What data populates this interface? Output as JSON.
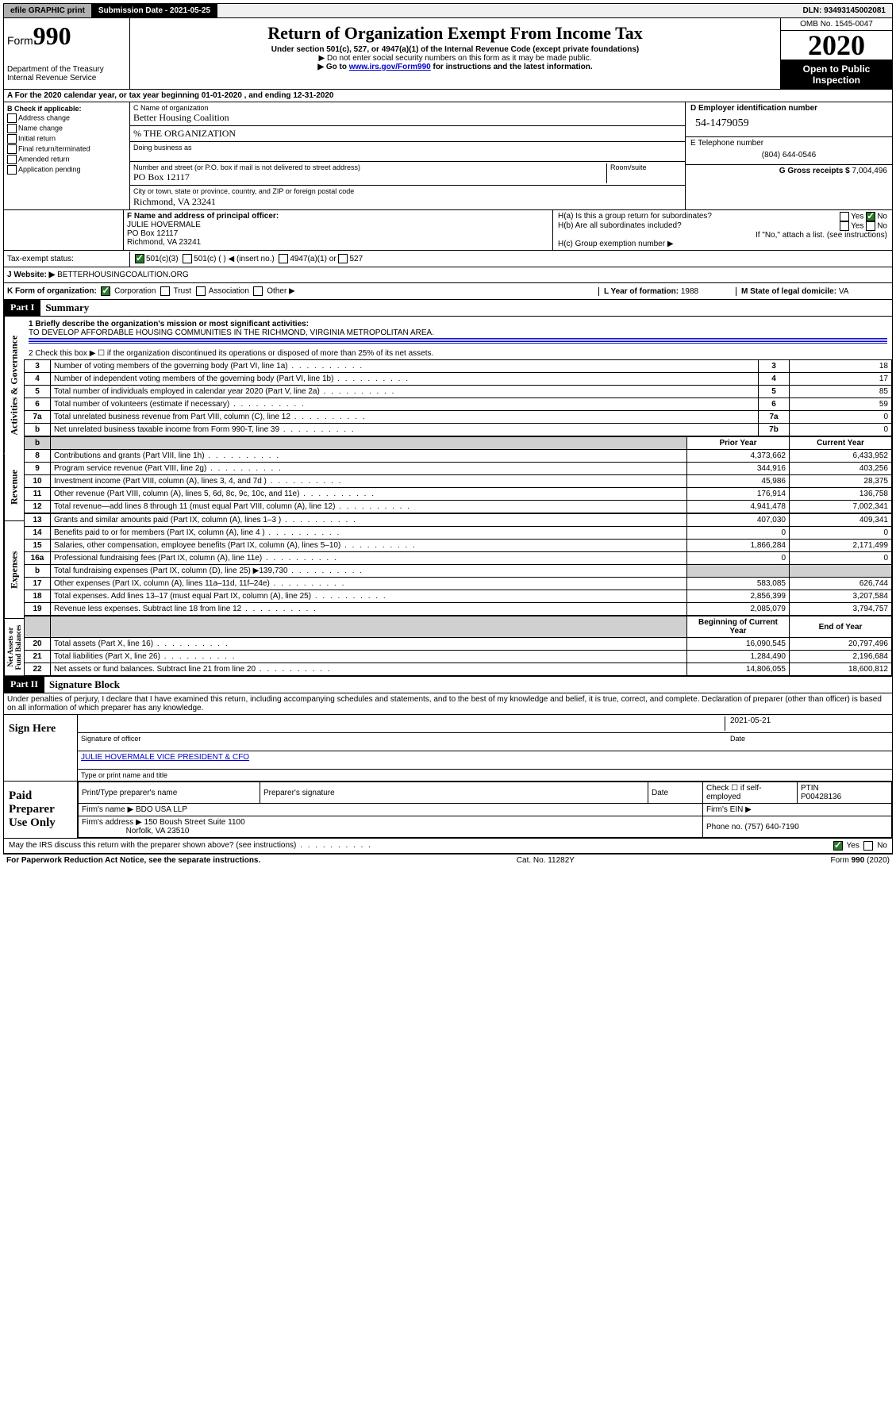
{
  "topbar": {
    "efile": "efile GRAPHIC print",
    "submission_label": "Submission Date - 2021-05-25",
    "dln": "DLN: 93493145002081"
  },
  "header": {
    "form_prefix": "Form",
    "form_number": "990",
    "dept1": "Department of the Treasury",
    "dept2": "Internal Revenue Service",
    "title": "Return of Organization Exempt From Income Tax",
    "sub1": "Under section 501(c), 527, or 4947(a)(1) of the Internal Revenue Code (except private foundations)",
    "sub2": "▶ Do not enter social security numbers on this form as it may be made public.",
    "sub3_prefix": "▶ Go to ",
    "sub3_link": "www.irs.gov/Form990",
    "sub3_suffix": " for instructions and the latest information.",
    "omb": "OMB No. 1545-0047",
    "year": "2020",
    "inspect1": "Open to Public",
    "inspect2": "Inspection"
  },
  "rowA": "A For the 2020 calendar year, or tax year beginning 01-01-2020    , and ending 12-31-2020",
  "boxB": {
    "title": "B Check if applicable:",
    "opts": [
      "Address change",
      "Name change",
      "Initial return",
      "Final return/terminated",
      "Amended return",
      "Application pending"
    ]
  },
  "boxC": {
    "label": "C Name of organization",
    "name": "Better Housing Coalition",
    "care": "% THE ORGANIZATION",
    "dba_label": "Doing business as",
    "addr_label": "Number and street (or P.O. box if mail is not delivered to street address)",
    "room_label": "Room/suite",
    "addr": "PO Box 12117",
    "city_label": "City or town, state or province, country, and ZIP or foreign postal code",
    "city": "Richmond, VA  23241"
  },
  "boxD": {
    "label": "D Employer identification number",
    "value": "54-1479059"
  },
  "boxE": {
    "label": "E Telephone number",
    "value": "(804) 644-0546"
  },
  "boxG": {
    "label": "G Gross receipts $ ",
    "value": "7,004,496"
  },
  "boxF": {
    "label": "F  Name and address of principal officer:",
    "name": "JULIE HOVERMALE",
    "addr1": "PO Box 12117",
    "addr2": "Richmond, VA  23241"
  },
  "boxH": {
    "a": "H(a)  Is this a group return for subordinates?",
    "b": "H(b)  Are all subordinates included?",
    "note": "If \"No,\" attach a list. (see instructions)",
    "c": "H(c)  Group exemption number ▶",
    "yes": "Yes",
    "no": "No"
  },
  "taxStatus": {
    "label": "Tax-exempt status:",
    "o1": "501(c)(3)",
    "o2": "501(c) (  ) ◀ (insert no.)",
    "o3": "4947(a)(1) or",
    "o4": "527"
  },
  "boxJ": {
    "label": "J   Website: ▶",
    "value": "BETTERHOUSINGCOALITION.ORG"
  },
  "boxK": {
    "label": "K Form of organization:",
    "opts": [
      "Corporation",
      "Trust",
      "Association",
      "Other ▶"
    ]
  },
  "boxL": {
    "label": "L Year of formation: ",
    "value": "1988"
  },
  "boxM": {
    "label": "M State of legal domicile: ",
    "value": "VA"
  },
  "part1": {
    "header": "Part I",
    "title": "Summary",
    "q1_label": "1   Briefly describe the organization's mission or most significant activities:",
    "q1_value": "TO DEVELOP AFFORDABLE HOUSING COMMUNITIES IN THE RICHMOND, VIRGINIA METROPOLITAN AREA.",
    "q2": "2   Check this box ▶ ☐  if the organization discontinued its operations or disposed of more than 25% of its net assets.",
    "sideA": "Activities & Governance",
    "sideR": "Revenue",
    "sideE": "Expenses",
    "sideN": "Net Assets or Fund Balances",
    "rows_top": [
      {
        "n": "3",
        "t": "Number of voting members of the governing body (Part VI, line 1a)",
        "b": "3",
        "v": "18"
      },
      {
        "n": "4",
        "t": "Number of independent voting members of the governing body (Part VI, line 1b)",
        "b": "4",
        "v": "17"
      },
      {
        "n": "5",
        "t": "Total number of individuals employed in calendar year 2020 (Part V, line 2a)",
        "b": "5",
        "v": "85"
      },
      {
        "n": "6",
        "t": "Total number of volunteers (estimate if necessary)",
        "b": "6",
        "v": "59"
      },
      {
        "n": "7a",
        "t": "Total unrelated business revenue from Part VIII, column (C), line 12",
        "b": "7a",
        "v": "0"
      },
      {
        "n": "b",
        "t": "Net unrelated business taxable income from Form 990-T, line 39",
        "b": "7b",
        "v": "0"
      }
    ],
    "col_prior": "Prior Year",
    "col_current": "Current Year",
    "rows_rev": [
      {
        "n": "8",
        "t": "Contributions and grants (Part VIII, line 1h)",
        "p": "4,373,662",
        "c": "6,433,952"
      },
      {
        "n": "9",
        "t": "Program service revenue (Part VIII, line 2g)",
        "p": "344,916",
        "c": "403,256"
      },
      {
        "n": "10",
        "t": "Investment income (Part VIII, column (A), lines 3, 4, and 7d )",
        "p": "45,986",
        "c": "28,375"
      },
      {
        "n": "11",
        "t": "Other revenue (Part VIII, column (A), lines 5, 6d, 8c, 9c, 10c, and 11e)",
        "p": "176,914",
        "c": "136,758"
      },
      {
        "n": "12",
        "t": "Total revenue—add lines 8 through 11 (must equal Part VIII, column (A), line 12)",
        "p": "4,941,478",
        "c": "7,002,341"
      }
    ],
    "rows_exp": [
      {
        "n": "13",
        "t": "Grants and similar amounts paid (Part IX, column (A), lines 1–3 )",
        "p": "407,030",
        "c": "409,341"
      },
      {
        "n": "14",
        "t": "Benefits paid to or for members (Part IX, column (A), line 4 )",
        "p": "0",
        "c": "0"
      },
      {
        "n": "15",
        "t": "Salaries, other compensation, employee benefits (Part IX, column (A), lines 5–10)",
        "p": "1,866,284",
        "c": "2,171,499"
      },
      {
        "n": "16a",
        "t": "Professional fundraising fees (Part IX, column (A), line 11e)",
        "p": "0",
        "c": "0"
      },
      {
        "n": "b",
        "t": "Total fundraising expenses (Part IX, column (D), line 25) ▶139,730",
        "p": "",
        "c": "",
        "shaded": true
      },
      {
        "n": "17",
        "t": "Other expenses (Part IX, column (A), lines 11a–11d, 11f–24e)",
        "p": "583,085",
        "c": "626,744"
      },
      {
        "n": "18",
        "t": "Total expenses. Add lines 13–17 (must equal Part IX, column (A), line 25)",
        "p": "2,856,399",
        "c": "3,207,584"
      },
      {
        "n": "19",
        "t": "Revenue less expenses. Subtract line 18 from line 12",
        "p": "2,085,079",
        "c": "3,794,757"
      }
    ],
    "col_begin": "Beginning of Current Year",
    "col_end": "End of Year",
    "rows_net": [
      {
        "n": "20",
        "t": "Total assets (Part X, line 16)",
        "p": "16,090,545",
        "c": "20,797,496"
      },
      {
        "n": "21",
        "t": "Total liabilities (Part X, line 26)",
        "p": "1,284,490",
        "c": "2,196,684"
      },
      {
        "n": "22",
        "t": "Net assets or fund balances. Subtract line 21 from line 20",
        "p": "14,806,055",
        "c": "18,600,812"
      }
    ]
  },
  "part2": {
    "header": "Part II",
    "title": "Signature Block",
    "perjury": "Under penalties of perjury, I declare that I have examined this return, including accompanying schedules and statements, and to the best of my knowledge and belief, it is true, correct, and complete. Declaration of preparer (other than officer) is based on all information of which preparer has any knowledge.",
    "sign_here": "Sign Here",
    "sig_date": "2021-05-21",
    "sig_of_officer": "Signature of officer",
    "date": "Date",
    "officer_name": "JULIE HOVERMALE  VICE PRESIDENT & CFO",
    "type_name": "Type or print name and title",
    "paid": "Paid Preparer Use Only",
    "pt_name_label": "Print/Type preparer's name",
    "pt_sig_label": "Preparer's signature",
    "pt_date_label": "Date",
    "pt_check": "Check ☐ if self-employed",
    "ptin_label": "PTIN",
    "ptin": "P00428136",
    "firm_name_label": "Firm's name    ▶",
    "firm_name": "BDO USA LLP",
    "firm_ein_label": "Firm's EIN ▶",
    "firm_addr_label": "Firm's address ▶",
    "firm_addr1": "150 Boush Street Suite 1100",
    "firm_addr2": "Norfolk, VA  23510",
    "firm_phone_label": "Phone no. ",
    "firm_phone": "(757) 640-7190",
    "discuss": "May the IRS discuss this return with the preparer shown above? (see instructions)",
    "yes": "Yes",
    "no": "No"
  },
  "footer": {
    "left": "For Paperwork Reduction Act Notice, see the separate instructions.",
    "mid": "Cat. No. 11282Y",
    "right": "Form 990 (2020)"
  }
}
